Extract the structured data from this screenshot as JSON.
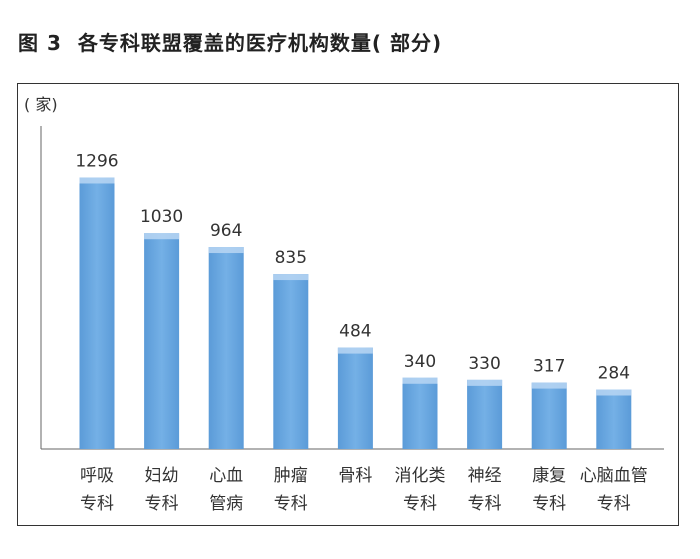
{
  "figure": {
    "number": "图 3",
    "title": "各专科联盟覆盖的医疗机构数量( 部分)"
  },
  "colors": {
    "bar": "#6aa7e0",
    "bar_top": "#b9d6f3",
    "axis": "#666666"
  },
  "chart_data": {
    "type": "bar",
    "title": "各专科联盟覆盖的医疗机构数量( 部分)",
    "ylabel": "( 家)",
    "xlabel": "",
    "categories": [
      [
        "呼吸",
        "专科"
      ],
      [
        "妇幼",
        "专科"
      ],
      [
        "心血",
        "管病"
      ],
      [
        "肿瘤",
        "专科"
      ],
      [
        "骨科"
      ],
      [
        "消化类",
        "专科"
      ],
      [
        "神经",
        "专科"
      ],
      [
        "康复",
        "专科"
      ],
      [
        "心脑血管",
        "专科"
      ]
    ],
    "values": [
      1296,
      1030,
      964,
      835,
      484,
      340,
      330,
      317,
      284
    ],
    "data_labels": [
      "1296",
      "1030",
      "964",
      "835",
      "484",
      "340",
      "330",
      "317",
      "284"
    ],
    "ylim": [
      0,
      1400
    ],
    "grid": false,
    "legend": "none"
  }
}
